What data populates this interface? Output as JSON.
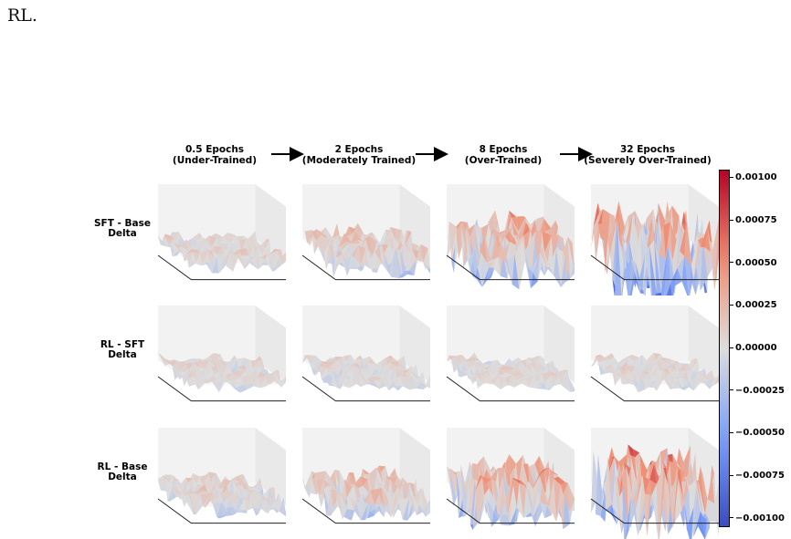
{
  "top_text": "RL.",
  "chart_data": {
    "type": "surface-grid",
    "columns": [
      "0.5 Epochs\n(Under-Trained)",
      "2 Epochs\n(Moderately Trained)",
      "8 Epochs\n(Over-Trained)",
      "32 Epochs\n(Severely Over-Trained)"
    ],
    "rows": [
      "SFT - Base\nDelta",
      "RL - SFT\nDelta",
      "RL - Base\nDelta"
    ],
    "amplitude": [
      [
        0.00025,
        0.0004,
        0.0007,
        0.00105
      ],
      [
        0.0002,
        0.0002,
        0.0002,
        0.0002
      ],
      [
        0.0003,
        0.00045,
        0.0007,
        0.001
      ]
    ],
    "colorbar": {
      "range": [
        -0.00105,
        0.00105
      ],
      "ticks": [
        "0.00100",
        "0.00075",
        "0.00050",
        "0.00025",
        "0.00000",
        "−0.00025",
        "−0.00050",
        "−0.00075",
        "−0.00100"
      ],
      "tick_values": [
        0.001,
        0.00075,
        0.0005,
        0.00025,
        0,
        -0.00025,
        -0.0005,
        -0.00075,
        -0.001
      ],
      "colormap": "coolwarm"
    }
  }
}
